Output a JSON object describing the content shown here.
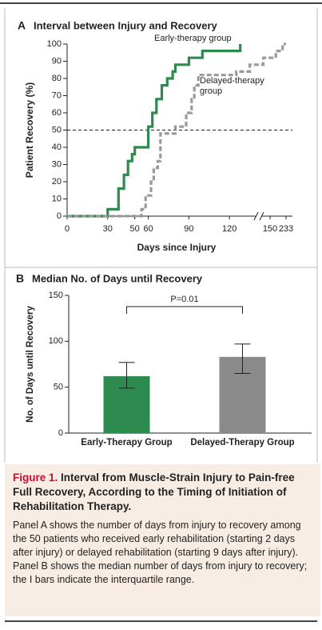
{
  "chart_data": [
    {
      "type": "line",
      "panel": "A",
      "title": "Interval between Injury and Recovery",
      "x_label": "Days since Injury",
      "y_label": "Patient Recovery (%)",
      "xlim": [
        0,
        233
      ],
      "x_break": 150,
      "xticks": [
        0,
        30,
        50,
        60,
        90,
        120,
        150,
        233
      ],
      "ylim": [
        0,
        100
      ],
      "yticks": [
        0,
        10,
        20,
        30,
        40,
        50,
        60,
        70,
        80,
        90,
        100
      ],
      "reference_line": 50,
      "series": [
        {
          "name": "Early-therapy group",
          "color": "#2e8b50",
          "dashed": false,
          "x": [
            0,
            30,
            30,
            38,
            38,
            42,
            42,
            45,
            45,
            48,
            48,
            50,
            50,
            60,
            60,
            63,
            63,
            66,
            66,
            70,
            70,
            74,
            74,
            78,
            78,
            80,
            80,
            90,
            90,
            100,
            100,
            128,
            128
          ],
          "values": [
            0,
            0,
            4,
            4,
            16,
            16,
            24,
            24,
            32,
            32,
            36,
            36,
            40,
            40,
            52,
            52,
            60,
            60,
            68,
            68,
            76,
            76,
            80,
            80,
            84,
            84,
            88,
            88,
            92,
            92,
            96,
            96,
            100
          ]
        },
        {
          "name": "Delayed-therapy group",
          "color": "#9a9a9a",
          "dashed": true,
          "x": [
            0,
            55,
            55,
            58,
            58,
            62,
            62,
            64,
            64,
            67,
            67,
            69,
            69,
            80,
            80,
            88,
            88,
            92,
            92,
            94,
            94,
            97,
            97,
            125,
            125,
            135,
            135,
            145,
            145,
            180,
            180,
            215,
            215,
            233
          ],
          "values": [
            0,
            0,
            4,
            4,
            12,
            12,
            20,
            20,
            28,
            28,
            32,
            32,
            48,
            48,
            52,
            52,
            60,
            60,
            68,
            68,
            76,
            76,
            82,
            82,
            84,
            84,
            88,
            88,
            92,
            92,
            96,
            96,
            100,
            100
          ]
        }
      ]
    },
    {
      "type": "bar",
      "panel": "B",
      "title": "Median No. of Days until Recovery",
      "y_label": "No. of Days until Recovery",
      "categories": [
        "Early-Therapy Group",
        "Delayed-Therapy Group"
      ],
      "values": [
        62,
        83
      ],
      "iqr": [
        [
          49,
          77
        ],
        [
          65,
          97
        ]
      ],
      "colors": [
        "#2e8b50",
        "#8a8a8a"
      ],
      "ylim": [
        0,
        150
      ],
      "yticks": [
        0,
        50,
        100,
        150
      ],
      "annotation": "P=0.01"
    }
  ],
  "caption": {
    "label": "Figure 1.",
    "title": "Interval from Muscle-Strain Injury to Pain-free Full Recovery, According to the Timing of Initiation of Rehabilitation Therapy.",
    "text": "Panel A shows the number of days from injury to recovery among the 50 patients who received early rehabilitation (starting 2 days after injury) or delayed rehabilitation (starting 9 days after injury). Panel B shows the median number of days from injury to recovery; the I bars indicate the interquartile range."
  }
}
